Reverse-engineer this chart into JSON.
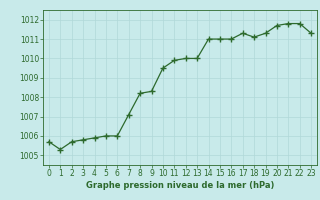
{
  "x": [
    0,
    1,
    2,
    3,
    4,
    5,
    6,
    7,
    8,
    9,
    10,
    11,
    12,
    13,
    14,
    15,
    16,
    17,
    18,
    19,
    20,
    21,
    22,
    23
  ],
  "y": [
    1005.7,
    1005.3,
    1005.7,
    1005.8,
    1005.9,
    1006.0,
    1006.0,
    1007.1,
    1008.2,
    1008.3,
    1009.5,
    1009.9,
    1010.0,
    1010.0,
    1011.0,
    1011.0,
    1011.0,
    1011.3,
    1011.1,
    1011.3,
    1011.7,
    1011.8,
    1011.8,
    1011.3
  ],
  "line_color": "#2d6a2d",
  "marker": "+",
  "marker_size": 4,
  "marker_linewidth": 1.0,
  "line_width": 0.9,
  "bg_color": "#c8eaea",
  "grid_color": "#b0d8d8",
  "xlabel": "Graphe pression niveau de la mer (hPa)",
  "xlabel_color": "#2d6a2d",
  "tick_color": "#2d6a2d",
  "ylim": [
    1004.5,
    1012.5
  ],
  "yticks": [
    1005,
    1006,
    1007,
    1008,
    1009,
    1010,
    1011,
    1012
  ],
  "xlim": [
    -0.5,
    23.5
  ],
  "xticks": [
    0,
    1,
    2,
    3,
    4,
    5,
    6,
    7,
    8,
    9,
    10,
    11,
    12,
    13,
    14,
    15,
    16,
    17,
    18,
    19,
    20,
    21,
    22,
    23
  ],
  "ylabel_fontsize": 6,
  "xlabel_fontsize": 6,
  "tick_fontsize": 5.5
}
